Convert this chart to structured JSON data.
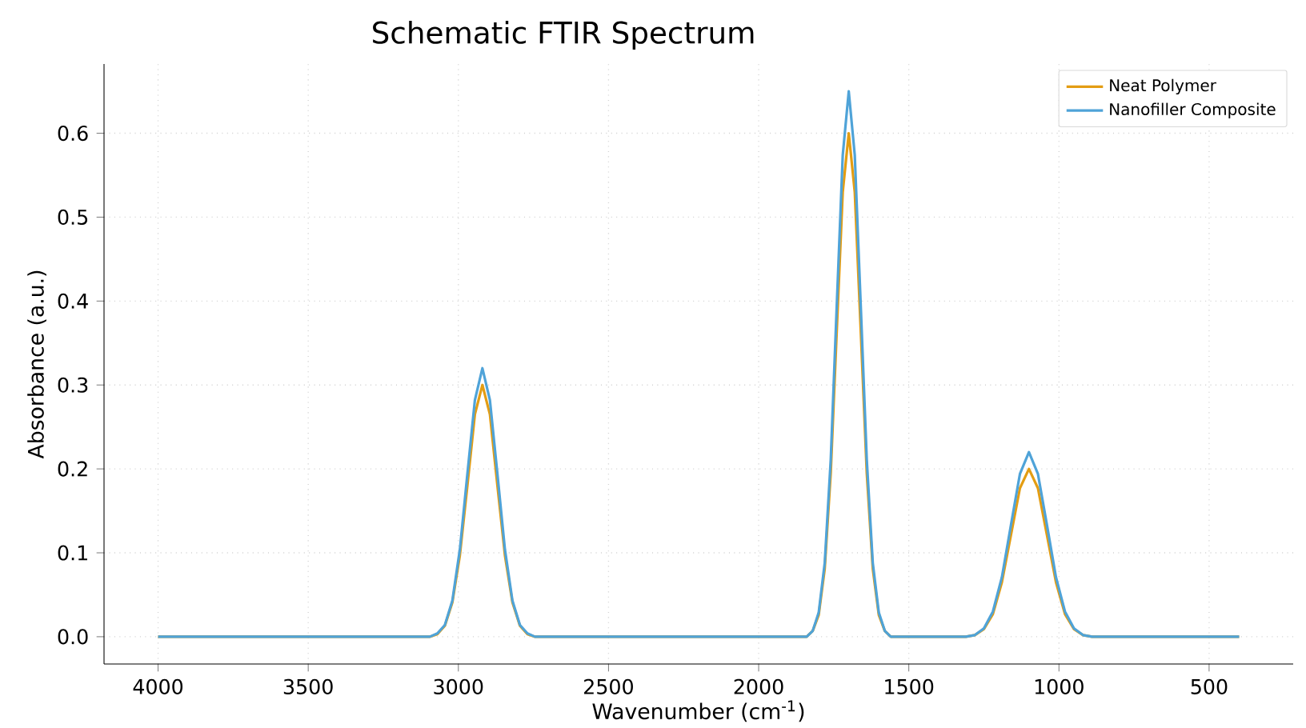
{
  "chart_data": {
    "type": "line",
    "title": "Schematic FTIR Spectrum",
    "xlabel": "Wavenumber (cm$^{-1}$)",
    "ylabel": "Absorbance (a.u.)",
    "x": [
      4000,
      3095,
      3070,
      3045,
      3020,
      2995,
      2970,
      2945,
      2920,
      2895,
      2870,
      2845,
      2820,
      2795,
      2770,
      2745,
      1840,
      1820,
      1800,
      1780,
      1760,
      1740,
      1720,
      1700,
      1680,
      1660,
      1640,
      1620,
      1600,
      1580,
      1560,
      1310,
      1280,
      1250,
      1220,
      1190,
      1160,
      1130,
      1100,
      1070,
      1040,
      1010,
      980,
      950,
      920,
      890,
      400
    ],
    "series": [
      {
        "name": "Neat Polymer",
        "color": "#e39d13",
        "values": [
          0,
          0,
          0.003,
          0.013,
          0.041,
          0.097,
          0.18,
          0.265,
          0.3,
          0.265,
          0.18,
          0.097,
          0.041,
          0.013,
          0.003,
          0,
          0,
          0.007,
          0.026,
          0.081,
          0.195,
          0.364,
          0.53,
          0.6,
          0.53,
          0.364,
          0.195,
          0.081,
          0.026,
          0.007,
          0,
          0,
          0.002,
          0.009,
          0.027,
          0.065,
          0.121,
          0.177,
          0.2,
          0.177,
          0.121,
          0.065,
          0.027,
          0.009,
          0.002,
          0,
          0
        ]
      },
      {
        "name": "Nanofiller Composite",
        "color": "#4fa3d8",
        "values": [
          0,
          0,
          0.004,
          0.014,
          0.043,
          0.104,
          0.194,
          0.282,
          0.32,
          0.282,
          0.194,
          0.104,
          0.043,
          0.014,
          0.004,
          0,
          0,
          0.007,
          0.029,
          0.088,
          0.211,
          0.394,
          0.574,
          0.65,
          0.574,
          0.394,
          0.211,
          0.088,
          0.029,
          0.007,
          0,
          0,
          0.002,
          0.01,
          0.03,
          0.071,
          0.133,
          0.194,
          0.22,
          0.194,
          0.133,
          0.071,
          0.03,
          0.01,
          0.002,
          0,
          0
        ]
      }
    ],
    "xlim": [
      4180,
      220
    ],
    "ylim": [
      -0.0325,
      0.6825
    ],
    "xticks": [
      4000,
      3500,
      3000,
      2500,
      2000,
      1500,
      1000,
      500
    ],
    "yticks": [
      {
        "value": 0,
        "label": "0.0"
      },
      {
        "value": 0.1,
        "label": "0.1"
      },
      {
        "value": 0.2,
        "label": "0.2"
      },
      {
        "value": 0.3,
        "label": "0.3"
      },
      {
        "value": 0.4,
        "label": "0.4"
      },
      {
        "value": 0.5,
        "label": "0.5"
      },
      {
        "value": 0.6,
        "label": "0.6"
      }
    ],
    "grid": true,
    "legend": "top right",
    "line_style": "solid"
  }
}
